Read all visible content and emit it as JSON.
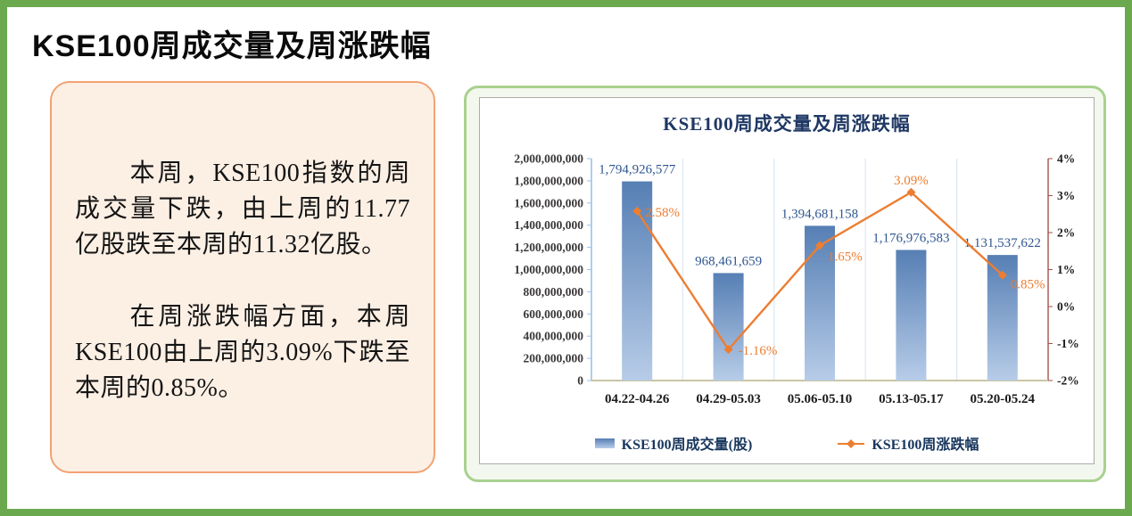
{
  "page_title": "KSE100周成交量及周涨跌幅",
  "summary_box": {
    "paragraph1": "本周，KSE100指数的周成交量下跌，由上周的11.77亿股跌至本周的11.32亿股。",
    "paragraph2": "在周涨跌幅方面，本周KSE100由上周的3.09%下跌至本周的0.85%。"
  },
  "chart_data": {
    "type": "bar+line combo, dual axis",
    "title": "KSE100周成交量及周涨跌幅",
    "categories": [
      "04.22-04.26",
      "04.29-05.03",
      "05.06-05.10",
      "05.13-05.17",
      "05.20-05.24"
    ],
    "series": [
      {
        "name": "KSE100周成交量(股)",
        "type": "bar",
        "axis": "left",
        "values": [
          1794926577,
          968461659,
          1394681158,
          1176976583,
          1131537622
        ],
        "data_labels": [
          "1,794,926,577",
          "968,461,659",
          "1,394,681,158",
          "1,176,976,583",
          "1,131,537,622"
        ]
      },
      {
        "name": "KSE100周涨跌幅",
        "type": "line",
        "axis": "right",
        "values": [
          2.58,
          -1.16,
          1.65,
          3.09,
          0.85
        ],
        "data_labels": [
          "2.58%",
          "-1.16%",
          "1.65%",
          "3.09%",
          "0.85%"
        ]
      }
    ],
    "left_axis": {
      "min": 0,
      "max": 2000000000,
      "step": 200000000,
      "tick_labels": [
        "2,000,000,000",
        "1,800,000,000",
        "1,600,000,000",
        "1,400,000,000",
        "1,200,000,000",
        "1,000,000,000",
        "800,000,000",
        "600,000,000",
        "400,000,000",
        "200,000,000",
        "0"
      ]
    },
    "right_axis": {
      "min": -2,
      "max": 4,
      "step": 1,
      "tick_labels": [
        "4%",
        "3%",
        "2%",
        "1%",
        "0%",
        "-1%",
        "-2%"
      ]
    },
    "legend": {
      "position": "bottom",
      "items": [
        "KSE100周成交量(股)",
        "KSE100周涨跌幅"
      ]
    },
    "grid": "vertical category separators only",
    "colors": {
      "bar_gradient_top": "#567FB4",
      "bar_gradient_bottom": "#B7CCE8",
      "bar_label": "#2E5690",
      "line": "#ED7D31",
      "point_label": "#ED7D31",
      "title": "#1F3864",
      "left_axis": "#9CC2E5",
      "right_axis": "#A6524C",
      "baseline": "#C9C6A4",
      "gridline": "#DCE6F2",
      "tick_text": "#3B3838",
      "page_border": "#6BA94F",
      "panel_border": "#A9D18E",
      "summary_border": "#F2A273",
      "summary_fill": "#FCF0E5"
    }
  }
}
